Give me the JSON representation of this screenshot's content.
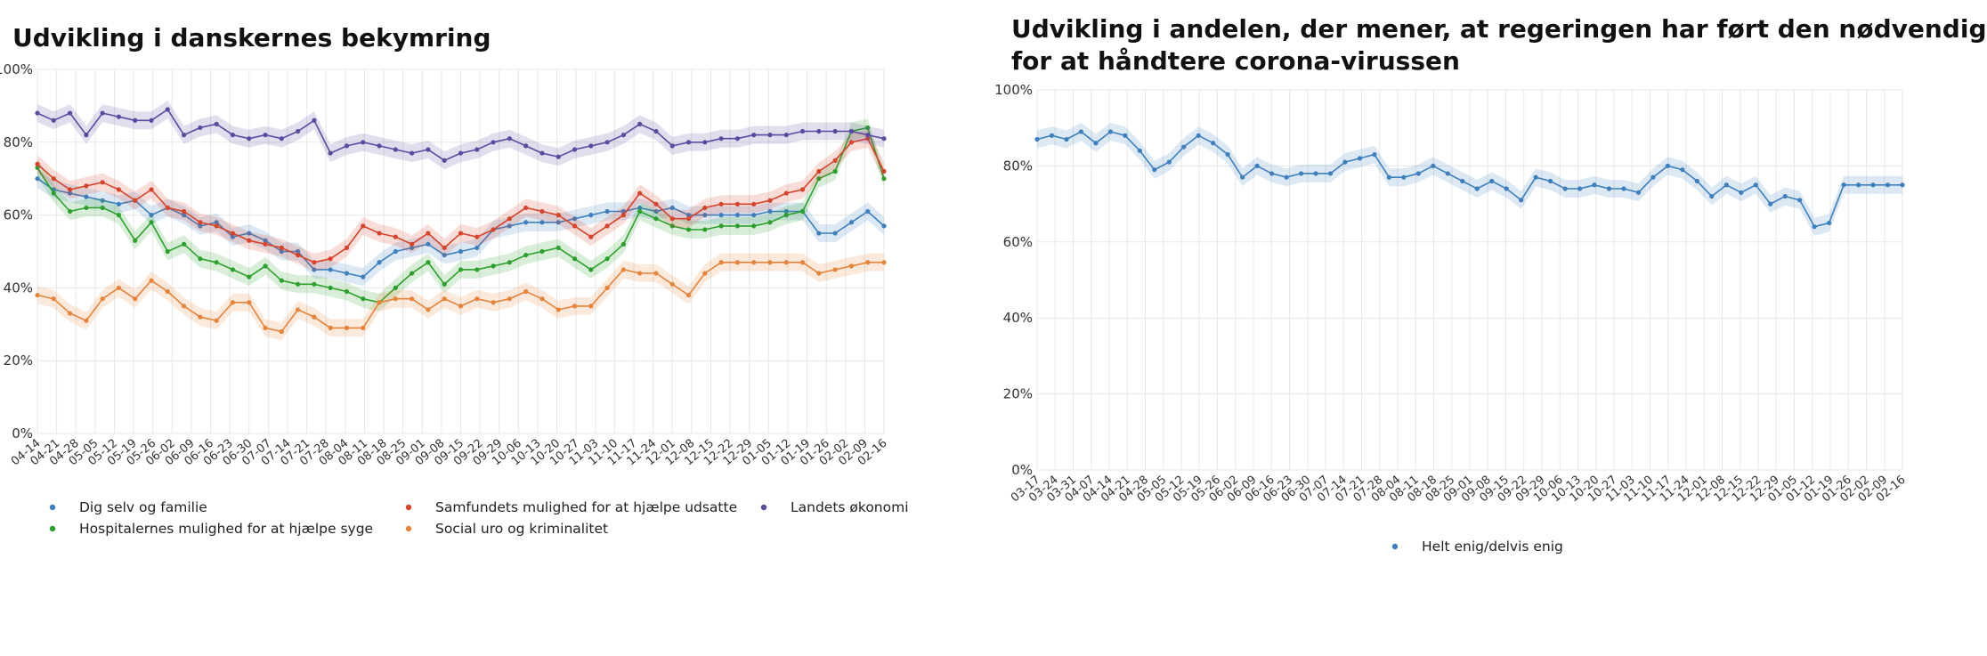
{
  "chart_data": [
    {
      "type": "line",
      "title": "Udvikling i danskernes bekymring",
      "xlabel": "",
      "ylabel": "",
      "ylim": [
        0,
        100
      ],
      "yticks": [
        "0%",
        "20%",
        "40%",
        "60%",
        "80%",
        "100%"
      ],
      "grid": true,
      "legend_position": "bottom",
      "x_tick_labels": [
        "04-14",
        "04-21",
        "04-28",
        "05-05",
        "05-12",
        "05-19",
        "05-26",
        "06-02",
        "06-09",
        "06-16",
        "06-23",
        "06-30",
        "07-07",
        "07-14",
        "07-21",
        "07-28",
        "08-04",
        "08-11",
        "08-18",
        "08-25",
        "09-01",
        "09-08",
        "09-15",
        "09-22",
        "09-29",
        "10-06",
        "10-13",
        "10-20",
        "10-27",
        "11-03",
        "11-10",
        "11-17",
        "11-24",
        "12-01",
        "12-08",
        "12-15",
        "12-22",
        "12-29",
        "01-05",
        "01-12",
        "01-19",
        "01-26",
        "02-02",
        "02-09",
        "02-16"
      ],
      "series": [
        {
          "name": "Dig selv og familie",
          "color": "#3d7fbf",
          "x": [
            0,
            1,
            2,
            3,
            4,
            5,
            6,
            7,
            8,
            9,
            10,
            11,
            12,
            13,
            14,
            15,
            16,
            17,
            18,
            19,
            20,
            21,
            22,
            23,
            24,
            25,
            26,
            27,
            28,
            29,
            30,
            31,
            32,
            33,
            34,
            35,
            36,
            37,
            38,
            39,
            40,
            41,
            42,
            43,
            44,
            45,
            46,
            47,
            48,
            49,
            50,
            51,
            52
          ],
          "values": [
            70,
            67,
            66,
            65,
            64,
            63,
            64,
            60,
            62,
            60,
            57,
            58,
            54,
            55,
            53,
            50,
            50,
            45,
            45,
            44,
            43,
            47,
            50,
            51,
            52,
            49,
            50,
            51,
            56,
            57,
            58,
            58,
            58,
            59,
            60,
            61,
            61,
            62,
            61,
            62,
            60,
            60,
            60,
            60,
            60,
            61,
            61,
            61,
            55,
            55,
            58,
            61,
            57
          ]
        },
        {
          "name": "Hospitalernes mulighed for at hjælpe syge",
          "color": "#2ca02c",
          "x": [
            0,
            1,
            2,
            3,
            4,
            5,
            6,
            7,
            8,
            9,
            10,
            11,
            12,
            13,
            14,
            15,
            16,
            17,
            18,
            19,
            20,
            21,
            22,
            23,
            24,
            25,
            26,
            27,
            28,
            29,
            30,
            31,
            32,
            33,
            34,
            35,
            36,
            37,
            38,
            39,
            40,
            41,
            42,
            43,
            44,
            45,
            46,
            47,
            48,
            49,
            50,
            51,
            52
          ],
          "values": [
            73,
            66,
            61,
            62,
            62,
            60,
            53,
            58,
            50,
            52,
            48,
            47,
            45,
            43,
            46,
            42,
            41,
            41,
            40,
            39,
            37,
            36,
            40,
            44,
            47,
            41,
            45,
            45,
            46,
            47,
            49,
            50,
            51,
            48,
            45,
            48,
            52,
            61,
            59,
            57,
            56,
            56,
            57,
            57,
            57,
            58,
            60,
            61,
            70,
            72,
            83,
            84,
            70
          ]
        },
        {
          "name": "Samfundets mulighed for at hjælpe udsatte",
          "color": "#d8432b",
          "x": [
            0,
            1,
            2,
            3,
            4,
            5,
            6,
            7,
            8,
            9,
            10,
            11,
            12,
            13,
            14,
            15,
            16,
            17,
            18,
            19,
            20,
            21,
            22,
            23,
            24,
            25,
            26,
            27,
            28,
            29,
            30,
            31,
            32,
            33,
            34,
            35,
            36,
            37,
            38,
            39,
            40,
            41,
            42,
            43,
            44,
            45,
            46,
            47,
            48,
            49,
            50,
            51,
            52
          ],
          "values": [
            74,
            70,
            67,
            68,
            69,
            67,
            64,
            67,
            62,
            61,
            58,
            57,
            55,
            53,
            52,
            51,
            49,
            47,
            48,
            51,
            57,
            55,
            54,
            52,
            55,
            51,
            55,
            54,
            56,
            59,
            62,
            61,
            60,
            57,
            54,
            57,
            60,
            66,
            63,
            59,
            59,
            62,
            63,
            63,
            63,
            64,
            66,
            67,
            72,
            75,
            80,
            81,
            72
          ]
        },
        {
          "name": "Social uro og kriminalitet",
          "color": "#e8833a",
          "x": [
            0,
            1,
            2,
            3,
            4,
            5,
            6,
            7,
            8,
            9,
            10,
            11,
            12,
            13,
            14,
            15,
            16,
            17,
            18,
            19,
            20,
            21,
            22,
            23,
            24,
            25,
            26,
            27,
            28,
            29,
            30,
            31,
            32,
            33,
            34,
            35,
            36,
            37,
            38,
            39,
            40,
            41,
            42,
            43,
            44,
            45,
            46,
            47,
            48,
            49,
            50,
            51,
            52
          ],
          "values": [
            38,
            37,
            33,
            31,
            37,
            40,
            37,
            42,
            39,
            35,
            32,
            31,
            36,
            36,
            29,
            28,
            34,
            32,
            29,
            29,
            29,
            36,
            37,
            37,
            34,
            37,
            35,
            37,
            36,
            37,
            39,
            37,
            34,
            35,
            35,
            40,
            45,
            44,
            44,
            41,
            38,
            44,
            47,
            47,
            47,
            47,
            47,
            47,
            44,
            45,
            46,
            47,
            47
          ]
        },
        {
          "name": "Landets økonomi",
          "color": "#5b4aa0",
          "x": [
            0,
            1,
            2,
            3,
            4,
            5,
            6,
            7,
            8,
            9,
            10,
            11,
            12,
            13,
            14,
            15,
            16,
            17,
            18,
            19,
            20,
            21,
            22,
            23,
            24,
            25,
            26,
            27,
            28,
            29,
            30,
            31,
            32,
            33,
            34,
            35,
            36,
            37,
            38,
            39,
            40,
            41,
            42,
            43,
            44,
            45,
            46,
            47,
            48,
            49,
            50,
            51,
            52
          ],
          "values": [
            88,
            86,
            88,
            82,
            88,
            87,
            86,
            86,
            89,
            82,
            84,
            85,
            82,
            81,
            82,
            81,
            83,
            86,
            77,
            79,
            80,
            79,
            78,
            77,
            78,
            75,
            77,
            78,
            80,
            81,
            79,
            77,
            76,
            78,
            79,
            80,
            82,
            85,
            83,
            79,
            80,
            80,
            81,
            81,
            82,
            82,
            82,
            83,
            83,
            83,
            83,
            82,
            81
          ]
        }
      ]
    },
    {
      "type": "line",
      "title": "Udvikling i andelen, der mener, at regeringen har ført den nødvendige politik for at håndtere corona-virussen",
      "xlabel": "",
      "ylabel": "",
      "ylim": [
        0,
        100
      ],
      "yticks": [
        "0%",
        "20%",
        "40%",
        "60%",
        "80%",
        "100%"
      ],
      "grid": true,
      "legend_position": "bottom",
      "x_tick_labels": [
        "03-17",
        "03-24",
        "03-31",
        "04-07",
        "04-14",
        "04-21",
        "04-28",
        "05-05",
        "05-12",
        "05-19",
        "05-26",
        "06-02",
        "06-09",
        "06-16",
        "06-23",
        "06-30",
        "07-07",
        "07-14",
        "07-21",
        "07-28",
        "08-04",
        "08-11",
        "08-18",
        "08-25",
        "09-01",
        "09-08",
        "09-15",
        "09-22",
        "09-29",
        "10-06",
        "10-13",
        "10-20",
        "10-27",
        "11-03",
        "11-10",
        "11-17",
        "11-24",
        "12-01",
        "12-08",
        "12-15",
        "12-22",
        "12-29",
        "01-05",
        "01-12",
        "01-19",
        "01-26",
        "02-02",
        "02-09",
        "02-16"
      ],
      "series": [
        {
          "name": "Helt enig/delvis enig",
          "color": "#3d7fbf",
          "x": [
            0,
            1,
            2,
            3,
            4,
            5,
            6,
            7,
            8,
            9,
            10,
            11,
            12,
            13,
            14,
            15,
            16,
            17,
            18,
            19,
            20,
            21,
            22,
            23,
            24,
            25,
            26,
            27,
            28,
            29,
            30,
            31,
            32,
            33,
            34,
            35,
            36,
            37,
            38,
            39,
            40,
            41,
            42,
            43,
            44,
            45,
            46,
            47,
            48,
            49,
            50,
            51,
            52,
            53,
            54,
            55,
            56,
            57,
            58,
            59
          ],
          "values": [
            87,
            88,
            87,
            89,
            86,
            89,
            88,
            84,
            79,
            81,
            85,
            88,
            86,
            83,
            77,
            80,
            78,
            77,
            78,
            78,
            78,
            81,
            82,
            83,
            77,
            77,
            78,
            80,
            78,
            76,
            74,
            76,
            74,
            71,
            77,
            76,
            74,
            74,
            75,
            74,
            74,
            73,
            77,
            80,
            79,
            76,
            72,
            75,
            73,
            75,
            70,
            72,
            71,
            64,
            65,
            75,
            75,
            75,
            75,
            75
          ]
        }
      ]
    }
  ],
  "legend_left": [
    {
      "label": "Dig selv og familie",
      "color": "#3d7fbf"
    },
    {
      "label": "Samfundets mulighed for at hjælpe udsatte",
      "color": "#d8432b"
    },
    {
      "label": "Landets økonomi",
      "color": "#5b4aa0"
    },
    {
      "label": "Hospitalernes mulighed for at hjælpe syge",
      "color": "#2ca02c"
    },
    {
      "label": "Social uro og kriminalitet",
      "color": "#e8833a"
    }
  ],
  "legend_right": [
    {
      "label": "Helt enig/delvis enig",
      "color": "#3d7fbf"
    }
  ],
  "titles": {
    "left": "Udvikling i danskernes bekymring",
    "right_line1": "Udvikling i andelen, der mener, at regeringen har ført den nødvendige politik",
    "right_line2": "for at håndtere corona-virussen"
  }
}
